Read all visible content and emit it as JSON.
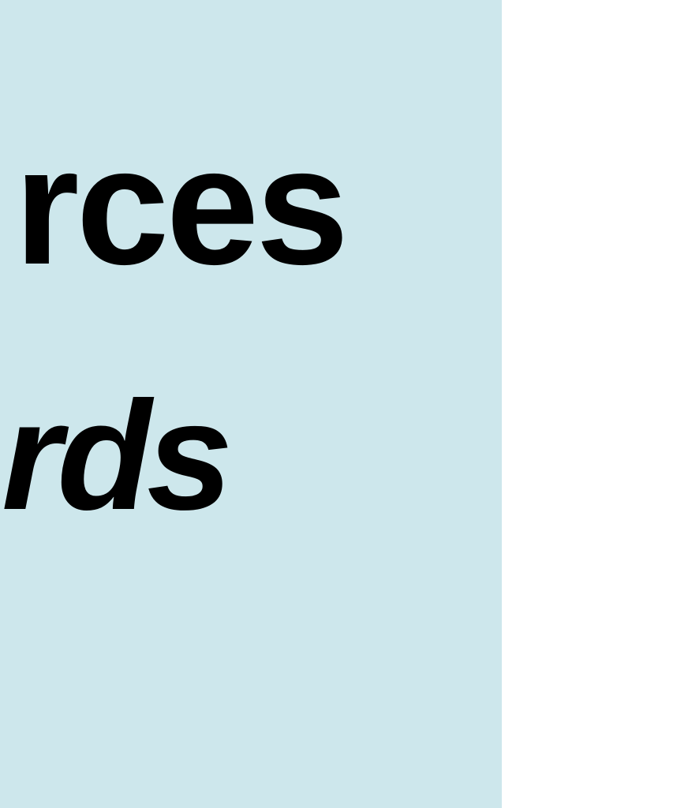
{
  "panel": {
    "background_color": "#cde7ec",
    "text_color": "#000000",
    "line_1": "rces",
    "line_2": "rds"
  },
  "page": {
    "background_color": "#ffffff"
  }
}
